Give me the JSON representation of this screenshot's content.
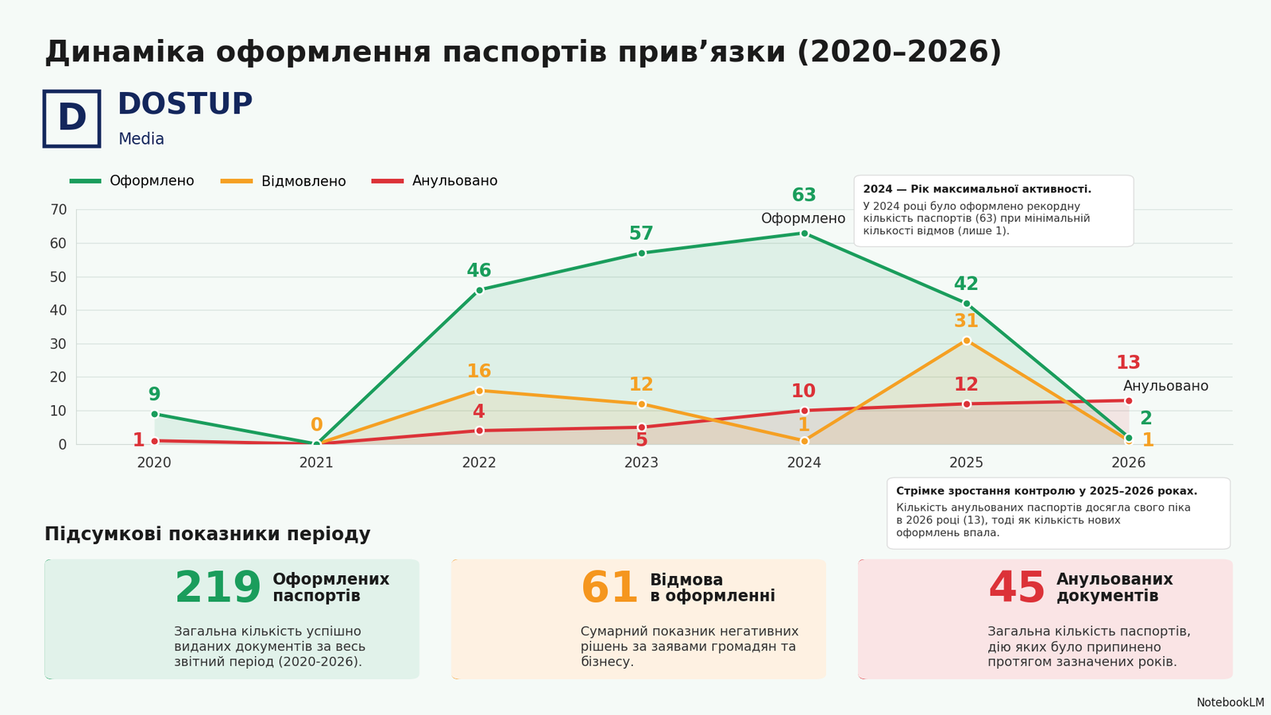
{
  "header": {
    "logo": "D",
    "brand": "DOSTUP",
    "brand_sub": "Media"
  },
  "chart_data": {
    "type": "line",
    "title": "Динаміка оформлення паспортів прив’язки (2020–2026)",
    "categories": [
      "2020",
      "2021",
      "2022",
      "2023",
      "2024",
      "2025",
      "2026"
    ],
    "series": [
      {
        "name": "Оформлено",
        "color": "#1a9d5c",
        "values": [
          9,
          0,
          46,
          57,
          63,
          42,
          2
        ],
        "value_labels": [
          "9",
          null,
          "46",
          "57",
          "63",
          "42",
          "2"
        ]
      },
      {
        "name": "Відмовлено",
        "color": "#f5a023",
        "values": [
          null,
          0,
          16,
          12,
          1,
          31,
          1
        ]
      },
      {
        "name": "Анульовано",
        "color": "#dc3238",
        "values": [
          1,
          0,
          4,
          5,
          10,
          12,
          13
        ],
        "value_labels": [
          "1",
          null,
          "4",
          "5",
          "10",
          "12",
          "13"
        ]
      }
    ],
    "ylim": [
      0,
      70
    ],
    "yticks": [
      0,
      10,
      20,
      30,
      40,
      50,
      60,
      70
    ],
    "grid": true,
    "legend": "upper left",
    "data_labels": true,
    "marker": "o",
    "annotations": [
      {
        "text": "Оформлено",
        "category": "2024",
        "series": "Оформлено"
      },
      {
        "text": "Анульовано",
        "category": "2026",
        "series": "Анульовано"
      }
    ],
    "notes": [
      {
        "title": "2024 — Рік максимальної активності.",
        "text": "У 2024 році було оформлено рекордну кількість паспортів (63) при мінімальній кількості відмов (лише 1)."
      },
      {
        "title": "Стрімке зростання контролю у 2025–2026 роках.",
        "text": "Кількість анульованих паспортів досягла свого піка в 2026 році (13), тоді як кількість нових оформлень впала."
      }
    ]
  },
  "summary": {
    "title": "Підсумкові показники періоду",
    "cards": [
      {
        "value": 219,
        "title": "Оформлених паспортів",
        "color": "#1a9d5c",
        "text": "Загальна кількість успішно виданих документів за весь звітний період (2020-2026)."
      },
      {
        "value": 61,
        "title": "Відмова в оформленні",
        "color": "#f5961e",
        "text": "Сумарний показник негативних рішень за заявами громадян та бізнесу."
      },
      {
        "value": 45,
        "title": "Анульованих документів",
        "color": "#dc3238",
        "text": "Загальна кількість паспортів, дію яких було припинено протягом зазначених років."
      }
    ]
  },
  "footer": "NotebookLM"
}
